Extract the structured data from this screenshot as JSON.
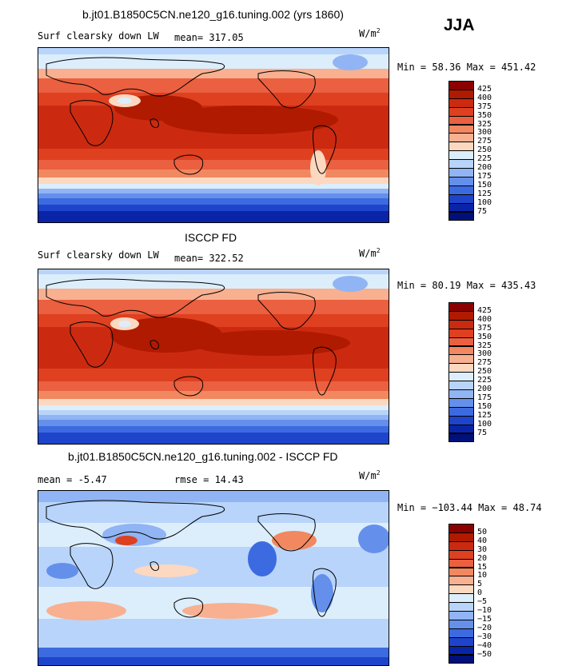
{
  "season": "JJA",
  "panels": [
    {
      "title": "b.jt01.B1850C5CN.ne120_g16.tuning.002 (yrs 1860)",
      "left_label": "Surf clearsky down LW",
      "stat1": "mean= 317.05",
      "stat2": "",
      "units_base": "W/m",
      "units_exp": "2",
      "minmax": "Min =  58.36 Max = 451.42",
      "levels": [
        "425",
        "400",
        "375",
        "350",
        "325",
        "300",
        "275",
        "250",
        "225",
        "200",
        "175",
        "150",
        "125",
        "100",
        "75"
      ],
      "colors": [
        "#8b0000",
        "#b01a00",
        "#cc2a10",
        "#de4020",
        "#ea6040",
        "#f28860",
        "#f8b090",
        "#fcd8c0",
        "#dceefc",
        "#b8d4fa",
        "#90b4f4",
        "#6490ec",
        "#3c6ae0",
        "#1e44cc",
        "#0a24a8",
        "#00107a"
      ]
    },
    {
      "title": "ISCCP FD",
      "left_label": "Surf clearsky down LW",
      "stat1": "mean= 322.52",
      "stat2": "",
      "units_base": "W/m",
      "units_exp": "2",
      "minmax": "Min =  80.19 Max = 435.43",
      "levels": [
        "425",
        "400",
        "375",
        "350",
        "325",
        "300",
        "275",
        "250",
        "225",
        "200",
        "175",
        "150",
        "125",
        "100",
        "75"
      ],
      "colors": [
        "#8b0000",
        "#b01a00",
        "#cc2a10",
        "#de4020",
        "#ea6040",
        "#f28860",
        "#f8b090",
        "#fcd8c0",
        "#dceefc",
        "#b8d4fa",
        "#90b4f4",
        "#6490ec",
        "#3c6ae0",
        "#1e44cc",
        "#0a24a8",
        "#00107a"
      ]
    },
    {
      "title": "b.jt01.B1850C5CN.ne120_g16.tuning.002 - ISCCP FD",
      "left_label": "mean =  -5.47",
      "stat1": "",
      "stat2": "rmse =  14.43",
      "units_base": "W/m",
      "units_exp": "2",
      "minmax": "Min = −103.44 Max =  48.74",
      "levels": [
        "50",
        "40",
        "30",
        "20",
        "15",
        "10",
        "5",
        "0",
        "−5",
        "−10",
        "−15",
        "−20",
        "−30",
        "−40",
        "−50"
      ],
      "colors": [
        "#8b0000",
        "#b01a00",
        "#cc2a10",
        "#de4020",
        "#ea6040",
        "#f28860",
        "#f8b090",
        "#fcd8c0",
        "#dceefc",
        "#b8d4fa",
        "#90b4f4",
        "#6490ec",
        "#3c6ae0",
        "#1e44cc",
        "#0a24a8",
        "#00107a"
      ]
    }
  ]
}
